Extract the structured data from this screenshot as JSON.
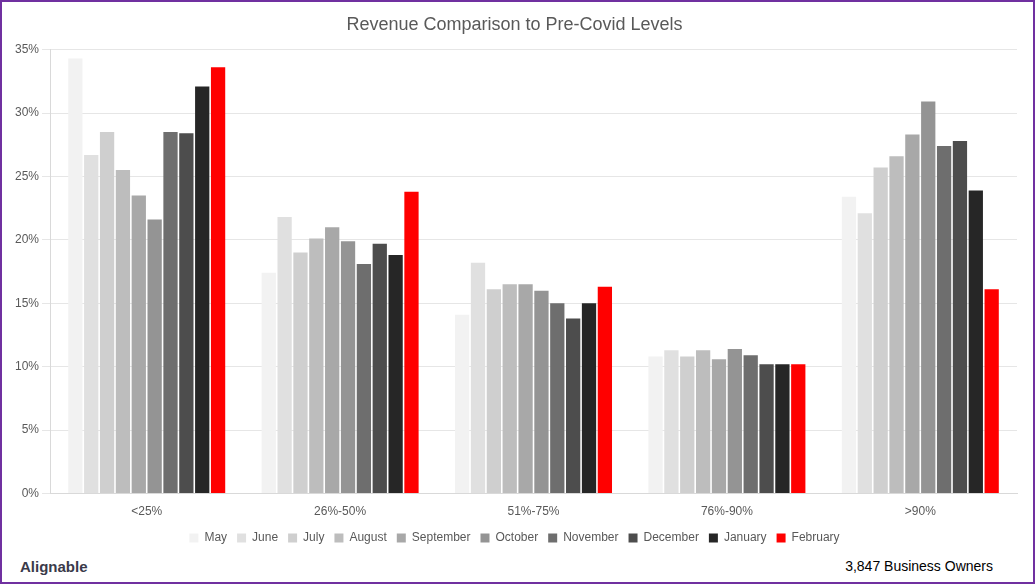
{
  "chart_data": {
    "type": "bar",
    "title": "Revenue Comparison to Pre-Covid Levels",
    "categories": [
      "<25%",
      "26%-50%",
      "51%-75%",
      "76%-90%",
      ">90%"
    ],
    "series": [
      {
        "name": "May",
        "color": "#f2f2f2",
        "values": [
          34.3,
          17.4,
          14.1,
          10.8,
          23.4
        ]
      },
      {
        "name": "June",
        "color": "#e0e0e0",
        "values": [
          26.7,
          21.8,
          18.2,
          11.3,
          22.1
        ]
      },
      {
        "name": "July",
        "color": "#cfcfcf",
        "values": [
          28.5,
          19.0,
          16.1,
          10.8,
          25.7
        ]
      },
      {
        "name": "August",
        "color": "#bdbdbd",
        "values": [
          25.5,
          20.1,
          16.5,
          11.3,
          26.6
        ]
      },
      {
        "name": "September",
        "color": "#a8a8a8",
        "values": [
          23.5,
          21.0,
          16.5,
          10.6,
          28.3
        ]
      },
      {
        "name": "October",
        "color": "#949494",
        "values": [
          21.6,
          19.9,
          16.0,
          11.4,
          30.9
        ]
      },
      {
        "name": "November",
        "color": "#6e6e6e",
        "values": [
          28.5,
          18.1,
          15.0,
          10.9,
          27.4
        ]
      },
      {
        "name": "December",
        "color": "#4d4d4d",
        "values": [
          28.4,
          19.7,
          13.8,
          10.2,
          27.8
        ]
      },
      {
        "name": "January",
        "color": "#262626",
        "values": [
          32.1,
          18.8,
          15.0,
          10.2,
          23.9
        ]
      },
      {
        "name": "February",
        "color": "#ff0000",
        "values": [
          33.6,
          23.8,
          16.3,
          10.2,
          16.1
        ]
      }
    ],
    "ylim": [
      0,
      35
    ],
    "yticks": [
      {
        "value": 0,
        "label": "0%"
      },
      {
        "value": 5,
        "label": "5%"
      },
      {
        "value": 10,
        "label": "10%"
      },
      {
        "value": 15,
        "label": "15%"
      },
      {
        "value": 20,
        "label": "20%"
      },
      {
        "value": 25,
        "label": "25%"
      },
      {
        "value": 30,
        "label": "30%"
      },
      {
        "value": 35,
        "label": "35%"
      }
    ],
    "grid": true,
    "legend": "bottom",
    "annotations": [
      "Alignable",
      "3,847 Business Owners"
    ]
  }
}
